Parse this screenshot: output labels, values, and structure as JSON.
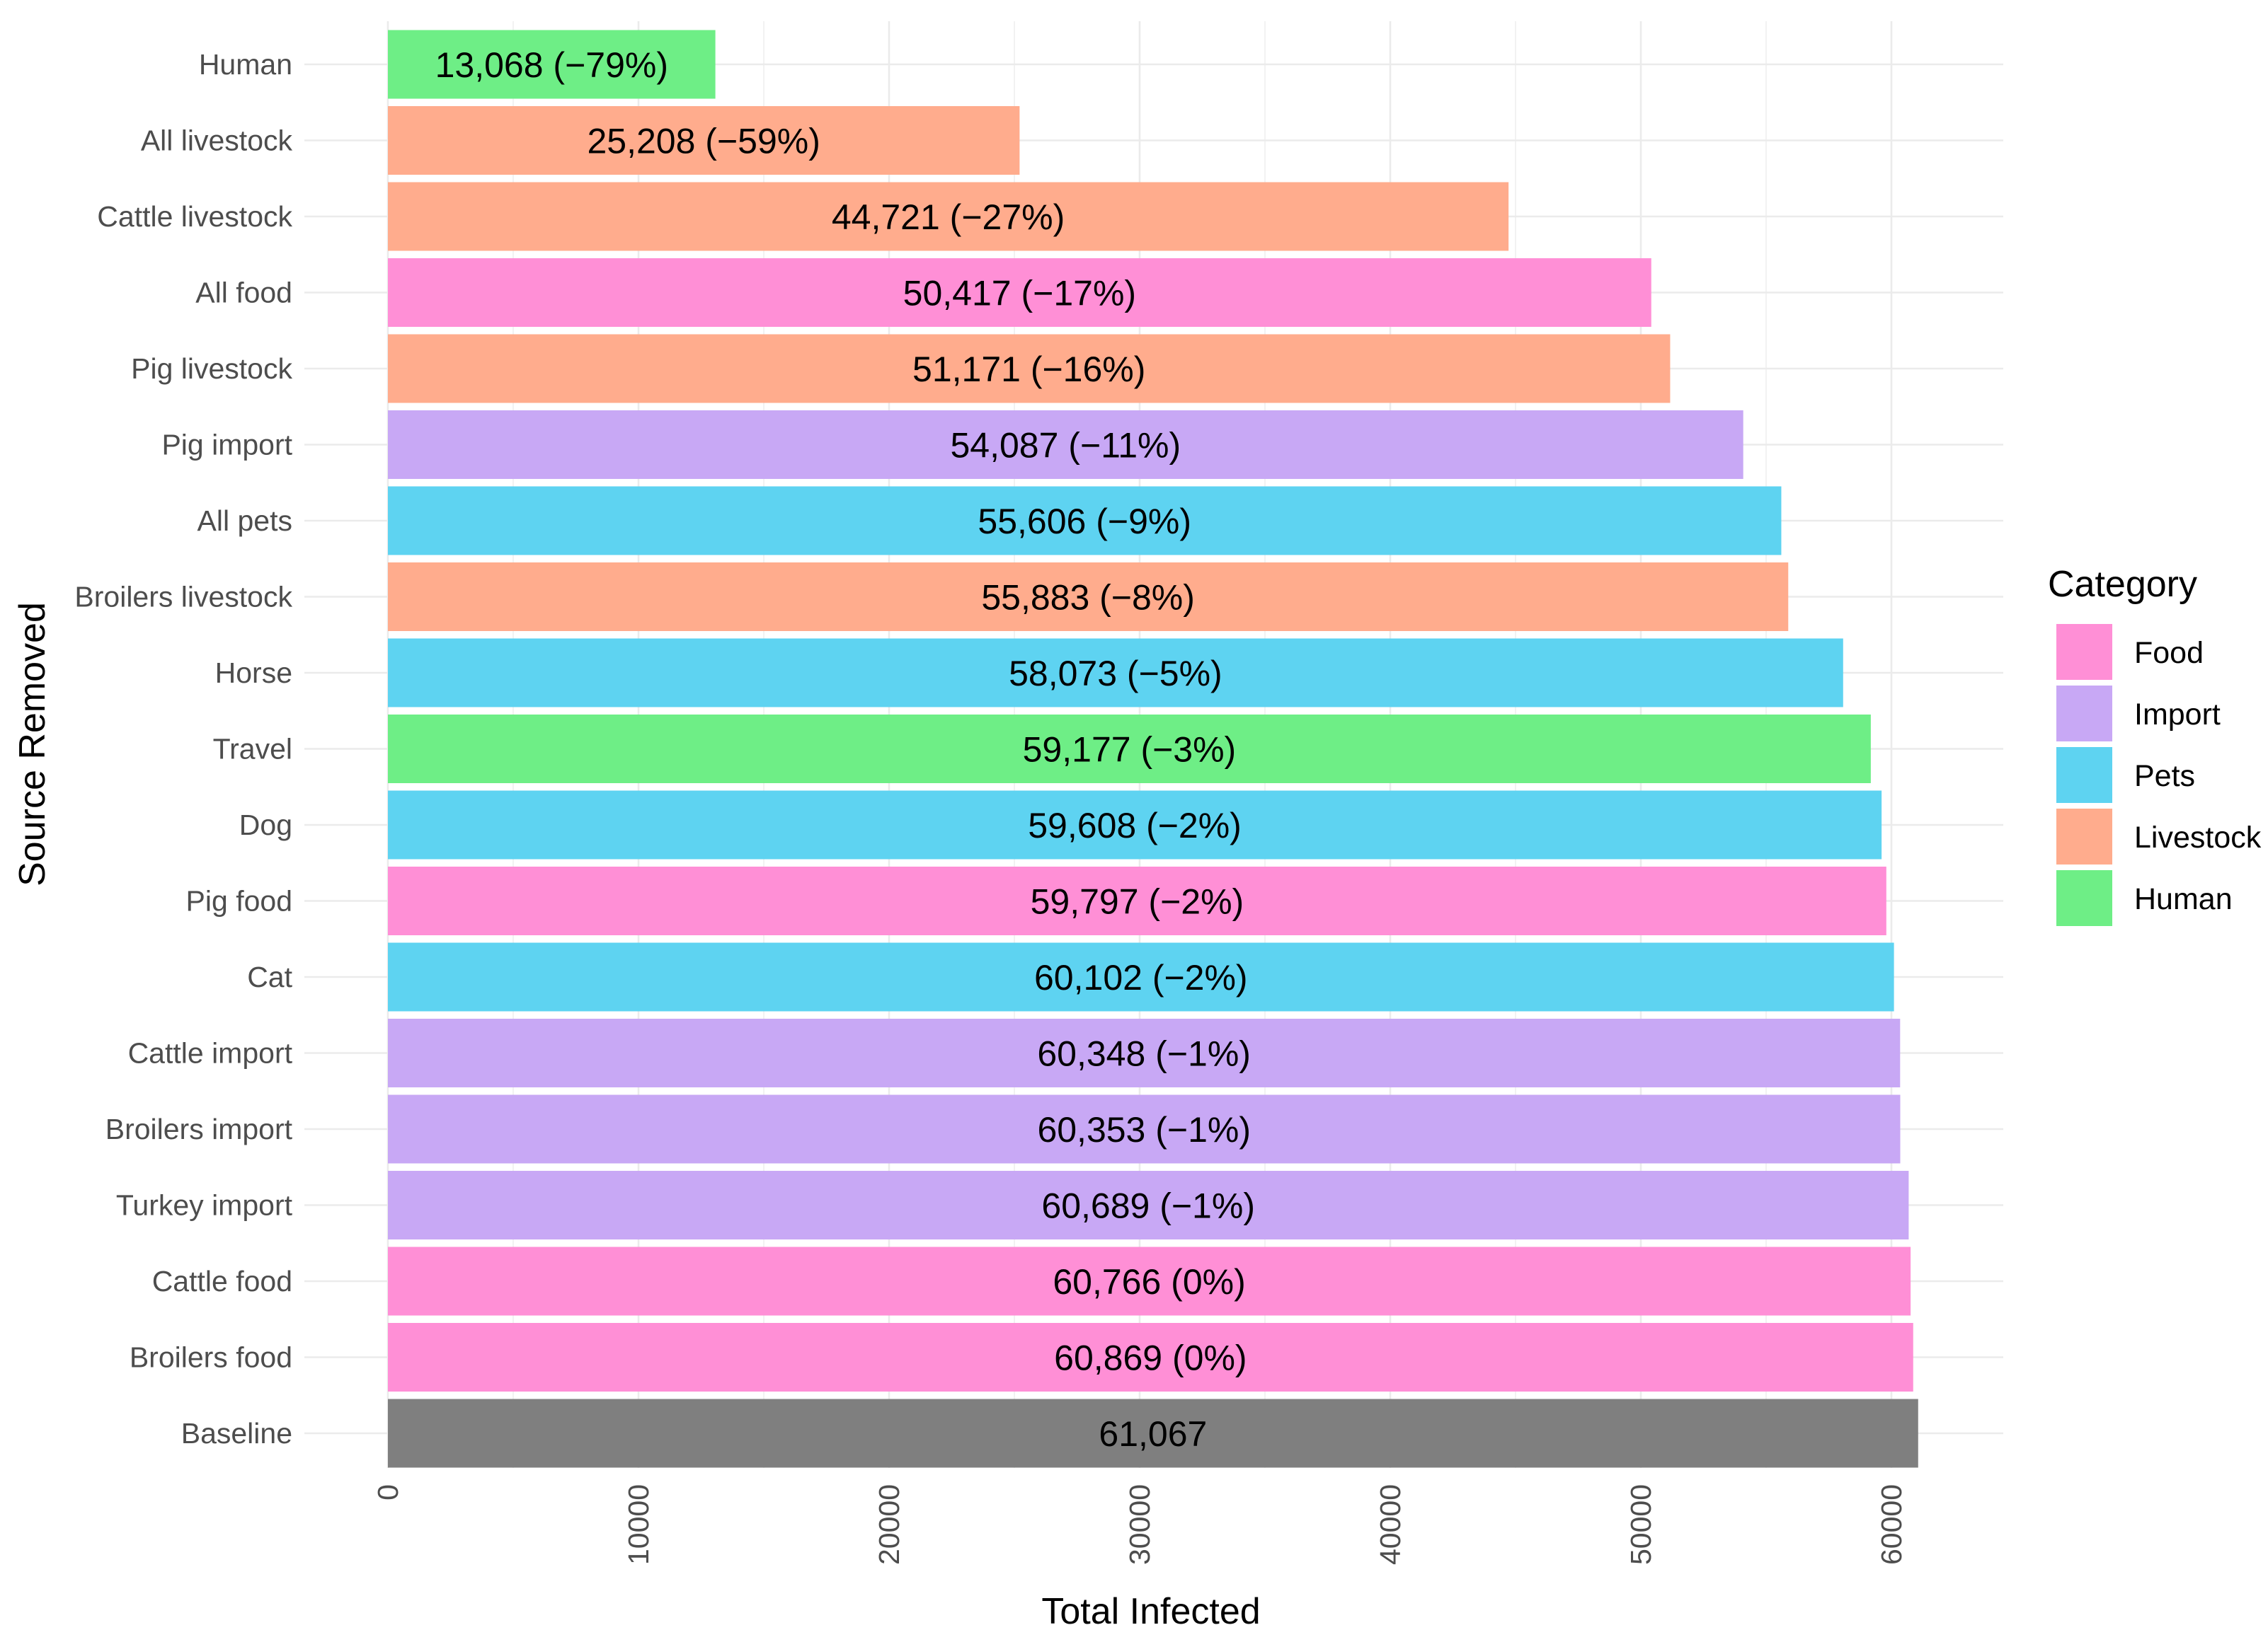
{
  "chart_data": {
    "type": "bar",
    "orientation": "horizontal",
    "title": "",
    "xlabel": "Total Infected",
    "ylabel": "Source Removed",
    "xlim": [
      0,
      64000
    ],
    "x_ticks": [
      0,
      10000,
      20000,
      30000,
      40000,
      50000,
      60000
    ],
    "x_tick_labels": [
      "0",
      "10000",
      "20000",
      "30000",
      "40000",
      "50000",
      "60000"
    ],
    "grid": true,
    "legend_position": "right",
    "legend": {
      "title": "Category",
      "entries": [
        {
          "name": "Food",
          "color": "#FF8FD6"
        },
        {
          "name": "Import",
          "color": "#C8A8F5"
        },
        {
          "name": "Pets",
          "color": "#5ED3F1"
        },
        {
          "name": "Livestock",
          "color": "#FFAC8D"
        },
        {
          "name": "Human",
          "color": "#6EEE86"
        }
      ]
    },
    "baseline_color": "#7F7F7F",
    "bars": [
      {
        "category": "Human",
        "group": "Human",
        "value": 13068,
        "label": "13,068 (−79%)"
      },
      {
        "category": "All livestock",
        "group": "Livestock",
        "value": 25208,
        "label": "25,208 (−59%)"
      },
      {
        "category": "Cattle livestock",
        "group": "Livestock",
        "value": 44721,
        "label": "44,721 (−27%)"
      },
      {
        "category": "All food",
        "group": "Food",
        "value": 50417,
        "label": "50,417 (−17%)"
      },
      {
        "category": "Pig livestock",
        "group": "Livestock",
        "value": 51171,
        "label": "51,171 (−16%)"
      },
      {
        "category": "Pig import",
        "group": "Import",
        "value": 54087,
        "label": "54,087 (−11%)"
      },
      {
        "category": "All pets",
        "group": "Pets",
        "value": 55606,
        "label": "55,606 (−9%)"
      },
      {
        "category": "Broilers livestock",
        "group": "Livestock",
        "value": 55883,
        "label": "55,883 (−8%)"
      },
      {
        "category": "Horse",
        "group": "Pets",
        "value": 58073,
        "label": "58,073 (−5%)"
      },
      {
        "category": "Travel",
        "group": "Human",
        "value": 59177,
        "label": "59,177 (−3%)"
      },
      {
        "category": "Dog",
        "group": "Pets",
        "value": 59608,
        "label": "59,608 (−2%)"
      },
      {
        "category": "Pig food",
        "group": "Food",
        "value": 59797,
        "label": "59,797 (−2%)"
      },
      {
        "category": "Cat",
        "group": "Pets",
        "value": 60102,
        "label": "60,102 (−2%)"
      },
      {
        "category": "Cattle import",
        "group": "Import",
        "value": 60348,
        "label": "60,348 (−1%)"
      },
      {
        "category": "Broilers import",
        "group": "Import",
        "value": 60353,
        "label": "60,353 (−1%)"
      },
      {
        "category": "Turkey import",
        "group": "Import",
        "value": 60689,
        "label": "60,689 (−1%)"
      },
      {
        "category": "Cattle food",
        "group": "Food",
        "value": 60766,
        "label": "60,766 (0%)"
      },
      {
        "category": "Broilers food",
        "group": "Food",
        "value": 60869,
        "label": "60,869 (0%)"
      },
      {
        "category": "Baseline",
        "group": "Baseline",
        "value": 61067,
        "label": "61,067"
      }
    ]
  }
}
